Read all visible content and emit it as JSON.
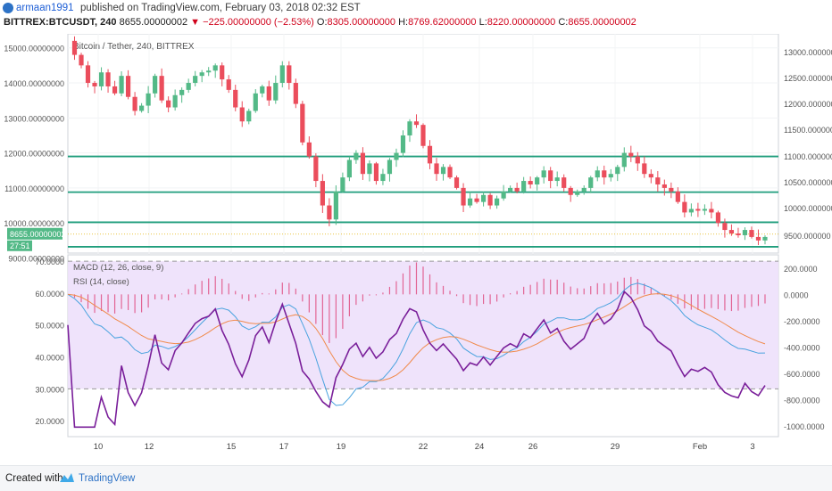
{
  "header": {
    "author": "armaan1991",
    "published_text": "published on TradingView.com, February 03, 2018 02:32 EST"
  },
  "ticker": {
    "symbol": "BITTREX:BTCUSDT, 240",
    "last": "8655.00000002",
    "change": "−225.00000000 (−2.53%)",
    "open_label": "O:",
    "open": "8305.00000000",
    "high_label": "H:",
    "high": "8769.62000000",
    "low_label": "L:",
    "low": "8220.00000000",
    "close_label": "C:",
    "close": "8655.00000002"
  },
  "colors": {
    "up": "#53b987",
    "down": "#eb4d5c",
    "hline": "#1f9e7c",
    "macd": "#4aa3df",
    "signal": "#f08a4b",
    "rsi": "#7a1f9a",
    "rsi_band": "#ede0fb",
    "hist": "#e0457b"
  },
  "chart_data": [
    {
      "type": "candlestick",
      "title": "Bitcoin / Tether, 240, BITTREX",
      "ylim": [
        9140,
        15400
      ],
      "left_ticks": [
        "15000.00000000",
        "14000.00000000",
        "13000.00000000",
        "12000.00000000",
        "11000.00000000",
        "10000.00000000",
        "9000.00000000"
      ],
      "right_ticks": [
        "13000.000000",
        "12500.000000",
        "12000.000000",
        "11500.000000",
        "11000.000000",
        "10500.000000",
        "10000.000000",
        "9500.000000"
      ],
      "price_label": "8655.00000002",
      "countdown_label": "27:51",
      "support_resistance": [
        11900,
        10880,
        10020,
        9320
      ],
      "dotted_line": 9680,
      "x_ticks": [
        "10",
        "12",
        "15",
        "17",
        "19",
        "22",
        "24",
        "26",
        "29",
        "Feb",
        "3"
      ],
      "ohlc_path": [
        15200,
        14800,
        14500,
        14000,
        13900,
        14300,
        13900,
        13700,
        14200,
        13600,
        13200,
        13350,
        13700,
        14200,
        13500,
        13300,
        13650,
        13800,
        14000,
        14200,
        14300,
        14350,
        14500,
        14100,
        13800,
        13300,
        12900,
        13200,
        13700,
        13900,
        13500,
        14000,
        14500,
        14000,
        13400,
        12300,
        11900,
        11200,
        10500,
        10100,
        10900,
        11300,
        11800,
        12000,
        11400,
        11700,
        11200,
        11400,
        11800,
        12000,
        12500,
        12900,
        12800,
        12200,
        11700,
        11400,
        11600,
        11300,
        11000,
        10500,
        10700,
        10600,
        10800,
        10500,
        10700,
        10900,
        11000,
        10900,
        11200,
        11100,
        11300,
        11500,
        11200,
        11300,
        11000,
        10800,
        10900,
        11000,
        11300,
        11500,
        11300,
        11400,
        11600,
        12000,
        11900,
        11700,
        11400,
        11300,
        11100,
        11000,
        10900,
        10600,
        10300,
        10400,
        10350,
        10400,
        10300,
        10000,
        9800,
        9700,
        9650,
        9800,
        9600,
        9500,
        9600
      ]
    },
    {
      "type": "line",
      "series": [
        {
          "name": "MACD (12, 26, close, 9)"
        },
        {
          "name": "RSI (14, close)"
        }
      ],
      "left_ylim": [
        15,
        72
      ],
      "left_ticks": [
        "70.0000",
        "60.0000",
        "50.0000",
        "40.0000",
        "30.0000",
        "20.0000"
      ],
      "right_ylim": [
        -1080,
        300
      ],
      "right_ticks": [
        "200.0000",
        "0.0000",
        "-200.0000",
        "-400.0000",
        "-600.0000",
        "-800.0000",
        "-1000.0000"
      ],
      "rsi_band": [
        70,
        30
      ]
    }
  ]
}
